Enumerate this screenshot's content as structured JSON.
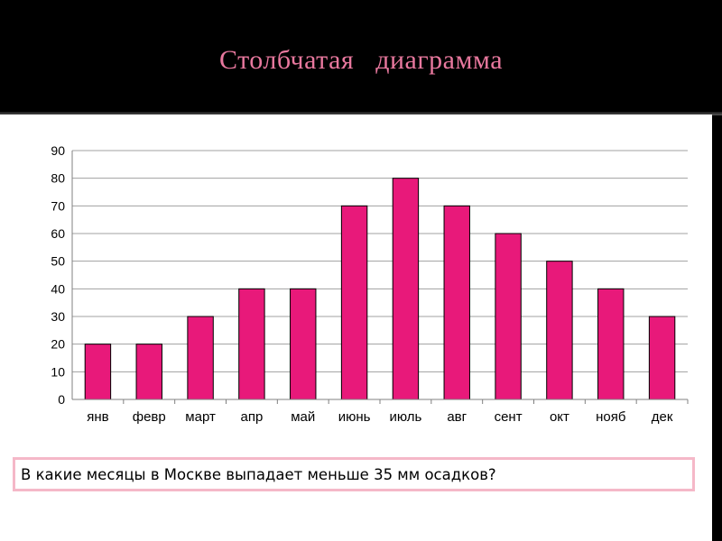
{
  "slide": {
    "title": "Столбчатая   диаграмма",
    "question": "В какие месяцы в Москве выпадает меньше 35 мм осадков?"
  },
  "colors": {
    "background": "#000000",
    "title": "#e8789e",
    "bar": "#e8197a",
    "bar_outline": "#000000",
    "content": "#ffffff",
    "question_border": "#f5b8c8",
    "grid": "#a0a0a0"
  },
  "chart_data": {
    "type": "bar",
    "categories": [
      "янв",
      "февр",
      "март",
      "апр",
      "май",
      "июнь",
      "июль",
      "авг",
      "сент",
      "окт",
      "нояб",
      "дек"
    ],
    "values": [
      20,
      20,
      30,
      40,
      40,
      70,
      80,
      70,
      60,
      50,
      40,
      30
    ],
    "yticks": [
      "0",
      "10",
      "20",
      "30",
      "40",
      "50",
      "60",
      "70",
      "80",
      "90"
    ],
    "ylim": [
      0,
      90
    ],
    "grid": true,
    "legend": "none",
    "title": "",
    "xlabel": "",
    "ylabel": ""
  }
}
